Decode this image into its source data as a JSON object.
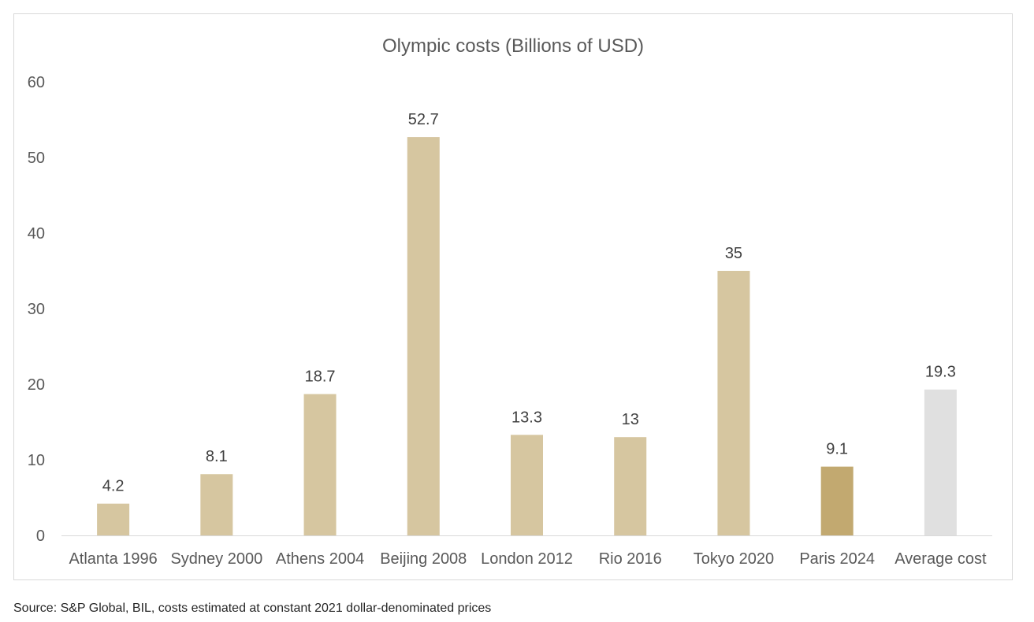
{
  "chart_data": {
    "type": "bar",
    "title": "Olympic costs (Billions of USD)",
    "xlabel": "",
    "ylabel": "",
    "ylim": [
      0,
      60
    ],
    "yticks": [
      0,
      10,
      20,
      30,
      40,
      50,
      60
    ],
    "grid": false,
    "legend": "none",
    "categories": [
      "Atlanta 1996",
      "Sydney 2000",
      "Athens 2004",
      "Beijing 2008",
      "London 2012",
      "Rio 2016",
      "Tokyo 2020",
      "Paris 2024",
      "Average cost"
    ],
    "values": [
      4.2,
      8.1,
      18.7,
      52.7,
      13.3,
      13,
      35,
      9.1,
      19.3
    ],
    "data_labels": [
      "4.2",
      "8.1",
      "18.7",
      "52.7",
      "13.3",
      "13",
      "35",
      "9.1",
      "19.3"
    ],
    "bar_colors": [
      "#d6c6a0",
      "#d6c6a0",
      "#d6c6a0",
      "#d6c6a0",
      "#d6c6a0",
      "#d6c6a0",
      "#d6c6a0",
      "#c2a970",
      "#e0e0e0"
    ]
  },
  "source_note": "Source: S&P Global, BIL, costs estimated at constant 2021 dollar-denominated prices"
}
